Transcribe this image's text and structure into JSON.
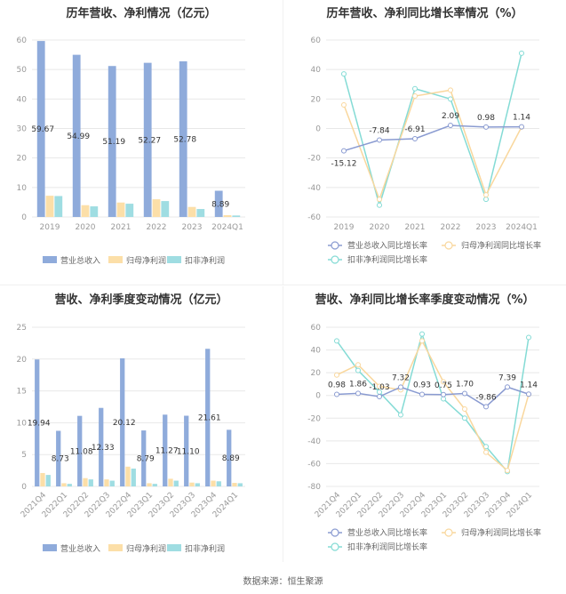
{
  "source": "数据来源：恒生聚源",
  "legends": {
    "bar": [
      "营业总收入",
      "归母净利润",
      "扣非净利润"
    ],
    "line": [
      "营业总收入同比增长率",
      "归母净利润同比增长率",
      "扣非净利润同比增长率"
    ]
  },
  "colors": {
    "revenue": "#8fabdb",
    "net_profit": "#fcdfa8",
    "deducted_profit": "#9fdde2",
    "revenue_line": "#8a9bd1",
    "net_line": "#f9d79d",
    "deducted_line": "#84dbd5",
    "grid": "#e8e8e8",
    "axis_text": "#999999"
  },
  "chart_data": [
    {
      "type": "bar",
      "title": "历年营收、净利情况（亿元）",
      "categories": [
        "2019",
        "2020",
        "2021",
        "2022",
        "2023",
        "2024Q1"
      ],
      "ylim": [
        0,
        60
      ],
      "yticks": [
        0,
        10,
        20,
        30,
        40,
        50,
        60
      ],
      "series": [
        {
          "name": "营业总收入",
          "values": [
            59.67,
            54.99,
            51.19,
            52.27,
            52.78,
            8.89
          ]
        },
        {
          "name": "归母净利润",
          "values": [
            7.2,
            4.0,
            4.9,
            6.0,
            3.4,
            0.6
          ]
        },
        {
          "name": "扣非净利润",
          "values": [
            7.1,
            3.6,
            4.5,
            5.4,
            2.7,
            0.5
          ]
        }
      ],
      "data_labels": [
        "59.67",
        "54.99",
        "51.19",
        "52.27",
        "52.78",
        "8.89"
      ]
    },
    {
      "type": "line",
      "title": "历年营收、净利同比增长率情况（%）",
      "categories": [
        "2019",
        "2020",
        "2021",
        "2022",
        "2023",
        "2024Q1"
      ],
      "ylim": [
        -60,
        60
      ],
      "yticks": [
        -60,
        -40,
        -20,
        0,
        20,
        40,
        60
      ],
      "series": [
        {
          "name": "营业总收入同比增长率",
          "values": [
            -15.12,
            -7.84,
            -6.91,
            2.09,
            0.98,
            1.14
          ]
        },
        {
          "name": "归母净利润同比增长率",
          "values": [
            16,
            -48,
            22,
            26,
            -45,
            1
          ]
        },
        {
          "name": "扣非净利润同比增长率",
          "values": [
            37,
            -52,
            27,
            20,
            -48,
            51
          ]
        }
      ],
      "data_labels": [
        "-15.12",
        "-7.84",
        "-6.91",
        "2.09",
        "0.98",
        "1.14"
      ]
    },
    {
      "type": "bar",
      "title": "营收、净利季度变动情况（亿元）",
      "categories": [
        "2021Q4",
        "2022Q1",
        "2022Q2",
        "2022Q3",
        "2022Q4",
        "2023Q1",
        "2023Q2",
        "2023Q3",
        "2023Q4",
        "2024Q1"
      ],
      "ylim": [
        0,
        25
      ],
      "yticks": [
        0,
        5,
        10,
        15,
        20,
        25
      ],
      "series": [
        {
          "name": "营业总收入",
          "values": [
            19.94,
            8.73,
            11.08,
            12.33,
            20.12,
            8.79,
            11.27,
            11.1,
            21.61,
            8.89
          ]
        },
        {
          "name": "归母净利润",
          "values": [
            2.1,
            0.5,
            1.3,
            1.1,
            3.1,
            0.5,
            1.2,
            0.6,
            0.9,
            0.55
          ]
        },
        {
          "name": "扣非净利润",
          "values": [
            1.8,
            0.4,
            1.1,
            0.9,
            2.8,
            0.4,
            0.9,
            0.5,
            0.8,
            0.5
          ]
        }
      ],
      "data_labels": [
        "19.94",
        "8.73",
        "11.08",
        "12.33",
        "20.12",
        "8.79",
        "11.27",
        "11.10",
        "21.61",
        "8.89"
      ]
    },
    {
      "type": "line",
      "title": "营收、净利同比增长率季度变动情况（%）",
      "categories": [
        "2021Q4",
        "2022Q1",
        "2022Q2",
        "2022Q3",
        "2022Q4",
        "2023Q1",
        "2023Q2",
        "2023Q3",
        "2023Q4",
        "2024Q1"
      ],
      "ylim": [
        -80,
        60
      ],
      "yticks": [
        -80,
        -60,
        -40,
        -20,
        0,
        20,
        40,
        60
      ],
      "series": [
        {
          "name": "营业总收入同比增长率",
          "values": [
            0.98,
            1.86,
            -1.03,
            7.32,
            0.93,
            0.75,
            1.7,
            -9.86,
            7.39,
            1.14
          ]
        },
        {
          "name": "归母净利润同比增长率",
          "values": [
            18,
            27,
            8,
            5,
            48,
            12,
            -12,
            -50,
            -66,
            1
          ]
        },
        {
          "name": "扣非净利润同比增长率",
          "values": [
            48,
            22,
            3,
            -17,
            54,
            -3,
            -20,
            -45,
            -67,
            51
          ]
        }
      ],
      "data_labels": [
        "0.98",
        "1.86",
        "-1.03",
        "7.32",
        "0.93",
        "0.75",
        "1.70",
        "-9.86",
        "7.39",
        "1.14"
      ]
    }
  ]
}
